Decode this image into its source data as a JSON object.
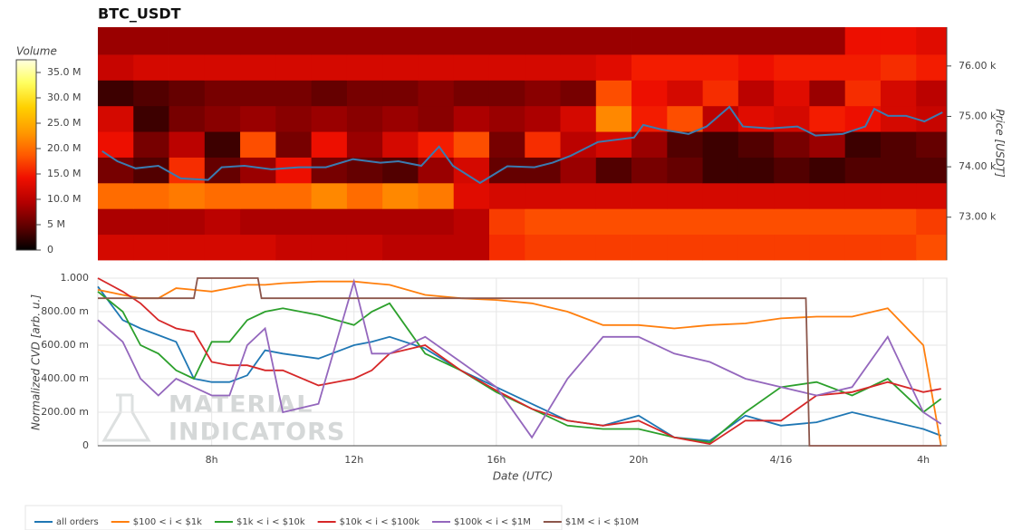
{
  "chart_data": [
    {
      "type": "heatmap",
      "title": "BTC_USDT",
      "colorbar_title": "Volume",
      "y2_label": "Price [USDT]",
      "xlim": [
        4.8,
        28.66
      ],
      "x_bins": [
        4.8,
        5.8,
        6.8,
        7.8,
        8.8,
        9.8,
        10.8,
        11.8,
        12.8,
        13.8,
        14.8,
        15.8,
        16.8,
        17.8,
        18.8,
        19.8,
        20.8,
        21.8,
        22.8,
        23.8,
        24.8,
        25.8,
        26.8,
        27.8,
        28.66
      ],
      "y_bins": [
        72150,
        72660,
        73170,
        73680,
        74190,
        74700,
        75210,
        75720,
        76230,
        76770
      ],
      "z": [
        [
          12,
          12,
          12,
          12,
          12,
          11,
          11,
          11,
          10,
          10,
          10,
          16,
          17,
          17,
          17,
          17,
          17,
          17,
          17,
          17,
          17,
          17,
          17,
          18
        ],
        [
          9,
          9,
          9,
          10,
          9,
          9,
          9,
          9,
          9,
          9,
          10,
          17,
          18,
          18,
          18,
          18,
          18,
          18,
          18,
          18,
          18,
          18,
          18,
          17
        ],
        [
          20,
          20,
          21,
          20,
          20,
          20,
          22,
          20,
          22,
          21,
          13,
          12,
          12,
          12,
          12,
          12,
          12,
          12,
          12,
          12,
          12,
          12,
          12,
          12
        ],
        [
          6,
          4,
          16,
          5,
          8,
          14,
          6,
          5,
          4,
          8,
          12,
          5,
          5,
          8,
          4,
          6,
          5,
          3,
          3,
          4,
          3,
          4,
          4,
          4
        ],
        [
          14,
          6,
          10,
          3,
          18,
          6,
          14,
          8,
          12,
          15,
          18,
          6,
          16,
          10,
          12,
          8,
          4,
          3,
          4,
          6,
          8,
          3,
          4,
          5
        ],
        [
          12,
          3,
          6,
          7,
          8,
          7,
          8,
          7,
          8,
          7,
          9,
          8,
          9,
          12,
          22,
          15,
          18,
          10,
          13,
          12,
          15,
          14,
          12,
          11
        ],
        [
          3,
          4,
          5,
          6,
          6,
          6,
          5,
          6,
          6,
          7,
          6,
          6,
          7,
          6,
          18,
          14,
          12,
          16,
          10,
          13,
          8,
          16,
          12,
          10
        ],
        [
          11,
          12,
          12,
          12,
          12,
          12,
          12,
          12,
          12,
          12,
          12,
          12,
          12,
          12,
          13,
          15,
          15,
          15,
          14,
          15,
          15,
          15,
          16,
          15
        ],
        [
          8,
          8,
          8,
          8,
          8,
          8,
          8,
          8,
          8,
          8,
          8,
          8,
          8,
          8,
          8,
          8,
          8,
          8,
          8,
          8,
          8,
          14,
          14,
          13
        ]
      ],
      "zlim": [
        0,
        37.5
      ],
      "zticks": [
        0,
        {
          "value": 5,
          "label": "5 M"
        },
        {
          "value": 10,
          "label": "10.0 M"
        },
        {
          "value": 15,
          "label": "15.0 M"
        },
        {
          "value": 20,
          "label": "20.0 M"
        },
        {
          "value": 25,
          "label": "25.0 M"
        },
        {
          "value": 30,
          "label": "30.0 M"
        },
        {
          "value": 35,
          "label": "35.0 M"
        }
      ],
      "colorscale": [
        [
          0,
          "#000000"
        ],
        [
          0.12,
          "#5c0000"
        ],
        [
          0.25,
          "#b30000"
        ],
        [
          0.38,
          "#f01000"
        ],
        [
          0.5,
          "#ff5a00"
        ],
        [
          0.62,
          "#ff9a00"
        ],
        [
          0.75,
          "#ffd000"
        ],
        [
          0.88,
          "#ffff60"
        ],
        [
          1,
          "#ffffe0"
        ]
      ],
      "y2lim": [
        72150,
        76770
      ],
      "y2ticks": [
        {
          "value": 73000,
          "label": "73.00 k"
        },
        {
          "value": 74000,
          "label": "74.00 k"
        },
        {
          "value": 75000,
          "label": "75.00 k"
        },
        {
          "value": 76000,
          "label": "76.00 k"
        }
      ],
      "price": {
        "axis": "y2",
        "color": "#3b7bb0",
        "x": [
          4.92,
          5.35,
          5.86,
          6.5,
          7.13,
          7.9,
          8.28,
          8.92,
          9.68,
          10.45,
          11.21,
          11.97,
          12.74,
          13.25,
          13.89,
          14.39,
          14.78,
          15.54,
          16.31,
          17.07,
          17.58,
          18.09,
          18.85,
          19.87,
          20.13,
          20.64,
          21.4,
          21.91,
          22.55,
          22.93,
          23.69,
          24.46,
          24.97,
          25.73,
          26.37,
          26.62,
          27.01,
          27.52,
          28.03,
          28.54
        ],
        "values": [
          74310,
          74110,
          73970,
          74020,
          73770,
          73740,
          73990,
          74020,
          73950,
          73990,
          73990,
          74150,
          74080,
          74110,
          74020,
          74400,
          74020,
          73680,
          74010,
          73990,
          74080,
          74220,
          74490,
          74580,
          74830,
          74740,
          74650,
          74800,
          75190,
          74800,
          74760,
          74800,
          74620,
          74650,
          74800,
          75150,
          75010,
          75010,
          74900,
          75080
        ]
      }
    },
    {
      "type": "line",
      "x_label": "Date (UTC)",
      "y_label": "Normalized CVD [arb. u.]",
      "grid": true,
      "legend": "bottom",
      "watermark": [
        "MATERIAL",
        "INDICATORS"
      ],
      "xlim": [
        4.8,
        28.66
      ],
      "xticks": [
        {
          "value": 8,
          "label": "8h"
        },
        {
          "value": 12,
          "label": "12h"
        },
        {
          "value": 16,
          "label": "16h"
        },
        {
          "value": 20,
          "label": "20h"
        },
        {
          "value": 24,
          "label": "4/16"
        },
        {
          "value": 28,
          "label": "4h"
        }
      ],
      "ylim": [
        0,
        1
      ],
      "yticks": [
        0,
        {
          "value": 0.2,
          "label": "200.00 m"
        },
        {
          "value": 0.4,
          "label": "400.00 m"
        },
        {
          "value": 0.6,
          "label": "600.00 m"
        },
        {
          "value": 0.8,
          "label": "800.00 m"
        },
        {
          "value": 1,
          "label": "1.000"
        }
      ],
      "x": [
        4.8,
        5.5,
        6,
        6.5,
        7,
        7.5,
        8,
        8.5,
        9,
        9.5,
        10,
        11,
        12,
        12.5,
        13,
        14,
        15,
        16,
        17,
        18,
        19,
        20,
        21,
        22,
        23,
        24,
        25,
        26,
        27,
        28,
        28.5
      ],
      "series": [
        {
          "name": "all orders",
          "color": "#1f77b4",
          "values": [
            0.95,
            0.75,
            0.7,
            0.66,
            0.62,
            0.4,
            0.38,
            0.38,
            0.42,
            0.57,
            0.55,
            0.52,
            0.6,
            0.62,
            0.65,
            0.58,
            0.45,
            0.35,
            0.25,
            0.15,
            0.12,
            0.18,
            0.05,
            0.03,
            0.18,
            0.12,
            0.14,
            0.2,
            0.15,
            0.1,
            0.06
          ]
        },
        {
          "name": "$100 < i < $1k",
          "color": "#ff7f0e",
          "values": [
            0.93,
            0.9,
            0.88,
            0.88,
            0.94,
            0.93,
            0.92,
            0.94,
            0.96,
            0.96,
            0.97,
            0.98,
            0.98,
            0.97,
            0.96,
            0.9,
            0.88,
            0.87,
            0.85,
            0.8,
            0.72,
            0.72,
            0.7,
            0.72,
            0.73,
            0.76,
            0.77,
            0.77,
            0.82,
            0.6,
            0
          ]
        },
        {
          "name": "$1k < i < $10k",
          "color": "#2ca02c",
          "values": [
            0.92,
            0.8,
            0.6,
            0.55,
            0.45,
            0.4,
            0.62,
            0.62,
            0.75,
            0.8,
            0.82,
            0.78,
            0.72,
            0.8,
            0.85,
            0.55,
            0.45,
            0.32,
            0.22,
            0.12,
            0.1,
            0.1,
            0.05,
            0.02,
            0.2,
            0.35,
            0.38,
            0.3,
            0.4,
            0.2,
            0.28
          ]
        },
        {
          "name": "$10k < i < $100k",
          "color": "#d62728",
          "values": [
            1,
            0.92,
            0.85,
            0.75,
            0.7,
            0.68,
            0.5,
            0.48,
            0.48,
            0.45,
            0.45,
            0.36,
            0.4,
            0.45,
            0.55,
            0.6,
            0.45,
            0.33,
            0.22,
            0.15,
            0.12,
            0.15,
            0.05,
            0.01,
            0.15,
            0.15,
            0.3,
            0.32,
            0.38,
            0.32,
            0.34
          ]
        },
        {
          "name": "$100k < i < $1M",
          "color": "#9467bd",
          "values": [
            0.75,
            0.62,
            0.4,
            0.3,
            0.4,
            0.35,
            0.3,
            0.3,
            0.6,
            0.7,
            0.2,
            0.25,
            0.98,
            0.55,
            0.55,
            0.65,
            0.5,
            0.35,
            0.05,
            0.4,
            0.65,
            0.65,
            0.55,
            0.5,
            0.4,
            0.35,
            0.3,
            0.35,
            0.65,
            0.2,
            0.13
          ]
        },
        {
          "name": "$1M < i < $10M",
          "color": "#8c564b",
          "x": [
            4.8,
            7.5,
            7.6,
            9.3,
            9.4,
            24.7,
            24.8,
            28.5
          ],
          "values": [
            0.88,
            0.88,
            1,
            1,
            0.88,
            0.88,
            0,
            0
          ]
        }
      ]
    }
  ]
}
